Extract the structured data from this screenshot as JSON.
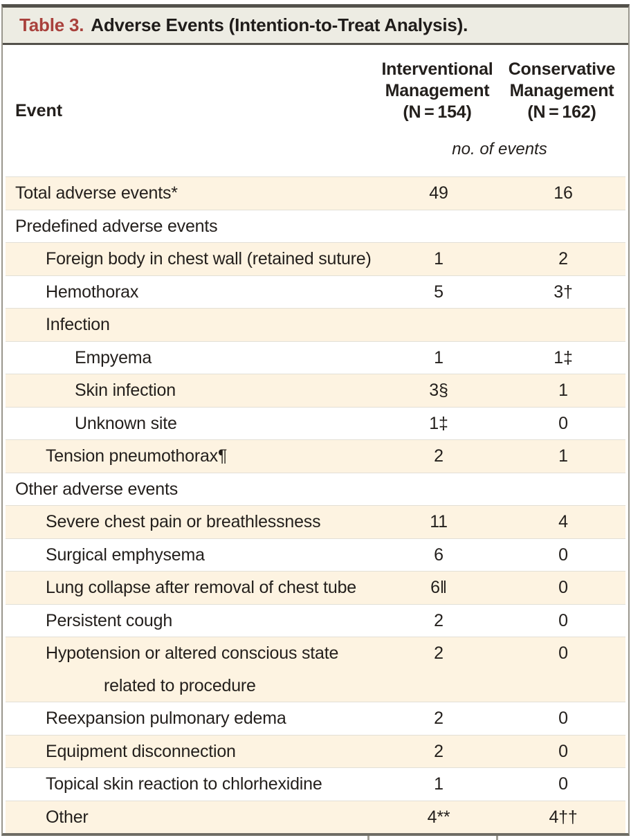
{
  "title": {
    "label": "Table 3.",
    "text": "Adverse Events (Intention-to-Treat Analysis)."
  },
  "header": {
    "event": "Event",
    "interventional": "Interventional\nManagement\n(N = 154)",
    "conservative": "Conservative\nManagement\n(N = 162)",
    "unit_note": "no. of events"
  },
  "rows": [
    {
      "label": "Total adverse events*",
      "indent": 0,
      "shaded": true,
      "interventional": "49",
      "conservative": "16"
    },
    {
      "label": "Predefined adverse events",
      "indent": 0,
      "shaded": false,
      "interventional": "",
      "conservative": ""
    },
    {
      "label": "Foreign body in chest wall (retained suture)",
      "indent": 1,
      "shaded": true,
      "interventional": "1",
      "conservative": "2"
    },
    {
      "label": "Hemothorax",
      "indent": 1,
      "shaded": false,
      "interventional": "5",
      "conservative": "3†"
    },
    {
      "label": "Infection",
      "indent": 1,
      "shaded": true,
      "interventional": "",
      "conservative": ""
    },
    {
      "label": "Empyema",
      "indent": 2,
      "shaded": false,
      "interventional": "1",
      "conservative": "1‡"
    },
    {
      "label": "Skin infection",
      "indent": 2,
      "shaded": true,
      "interventional": "3§",
      "conservative": "1"
    },
    {
      "label": "Unknown site",
      "indent": 2,
      "shaded": false,
      "interventional": "1‡",
      "conservative": "0"
    },
    {
      "label": "Tension pneumothorax¶",
      "indent": 1,
      "shaded": true,
      "interventional": "2",
      "conservative": "1"
    },
    {
      "label": "Other adverse events",
      "indent": 0,
      "shaded": false,
      "interventional": "",
      "conservative": ""
    },
    {
      "label": "Severe chest pain or breathlessness",
      "indent": 1,
      "shaded": true,
      "interventional": "11",
      "conservative": "4"
    },
    {
      "label": "Surgical emphysema",
      "indent": 1,
      "shaded": false,
      "interventional": "6",
      "conservative": "0"
    },
    {
      "label": "Lung collapse after removal of chest tube",
      "indent": 1,
      "shaded": true,
      "interventional": "6‖",
      "conservative": "0"
    },
    {
      "label": "Persistent cough",
      "indent": 1,
      "shaded": false,
      "interventional": "2",
      "conservative": "0"
    },
    {
      "label": "Hypotension or altered conscious state\nrelated to procedure",
      "indent": 1,
      "shaded": true,
      "wrap": true,
      "interventional": "2",
      "conservative": "0"
    },
    {
      "label": "Reexpansion pulmonary edema",
      "indent": 1,
      "shaded": false,
      "interventional": "2",
      "conservative": "0"
    },
    {
      "label": "Equipment disconnection",
      "indent": 1,
      "shaded": true,
      "interventional": "2",
      "conservative": "0"
    },
    {
      "label": "Topical skin reaction to chlorhexidine",
      "indent": 1,
      "shaded": false,
      "interventional": "1",
      "conservative": "0"
    },
    {
      "label": "Other",
      "indent": 1,
      "shaded": true,
      "interventional": "4**",
      "conservative": "4††"
    }
  ],
  "colors": {
    "accent_red": "#a9413c",
    "row_shade": "#fdf3e1",
    "title_band_bg": "#edece3",
    "rule_dark": "#53514b",
    "side_border": "#99968c",
    "text": "#231f1c"
  }
}
